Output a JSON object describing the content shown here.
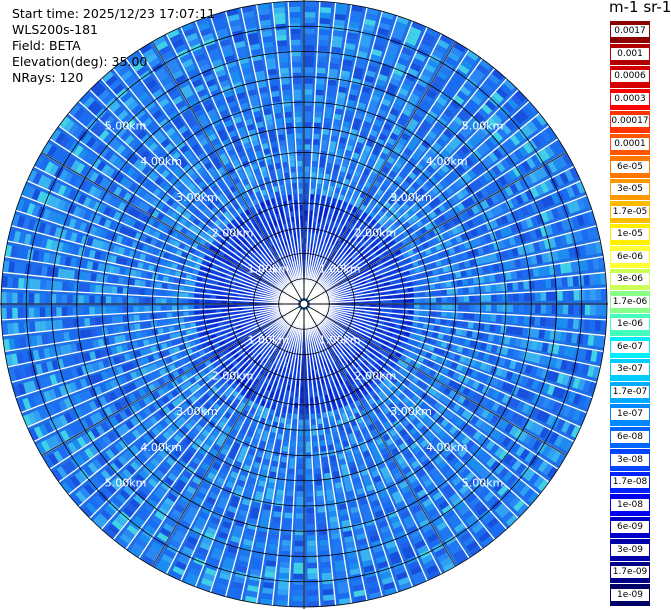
{
  "header": {
    "start_time": "Start time: 2025/12/23 17:07:11",
    "station": "WLS200s-181",
    "field": "Field: BETA",
    "elevation": "Elevation(deg): 35.00",
    "nrays": "NRays: 120"
  },
  "colorbar": {
    "title": "m-1 sr-1",
    "labels": [
      "0.0017",
      "0.001",
      "0.0006",
      "0.0003",
      "0.00017",
      "0.0001",
      "6e-05",
      "3e-05",
      "1.7e-05",
      "1e-05",
      "6e-06",
      "3e-06",
      "1.7e-06",
      "1e-06",
      "6e-07",
      "3e-07",
      "1.7e-07",
      "1e-07",
      "6e-08",
      "3e-08",
      "1.7e-08",
      "1e-08",
      "6e-09",
      "3e-09",
      "1.7e-09",
      "1e-09"
    ],
    "colors": [
      "#8b0000",
      "#b00000",
      "#d40000",
      "#ff0000",
      "#ff3300",
      "#ff5500",
      "#ff7700",
      "#ff9900",
      "#ffbb00",
      "#ffee00",
      "#ffff33",
      "#ccff55",
      "#88ff88",
      "#44ffbb",
      "#00eeff",
      "#00ccff",
      "#00aaff",
      "#0088ff",
      "#0066ff",
      "#0044ff",
      "#0022ff",
      "#0000ee",
      "#0000cc",
      "#0000aa",
      "#000088",
      "#000066"
    ]
  },
  "chart_data": {
    "type": "heatmap",
    "description_field": "BETA",
    "units": "m-1 sr-1",
    "rays": 120,
    "elevation_deg": 35.0,
    "range_rings_km": [
      1.0,
      2.0,
      3.0,
      4.0,
      5.0
    ],
    "ring_labels": [
      "1.00km",
      "2.00km",
      "3.00km",
      "4.00km",
      "5.00km"
    ],
    "max_range_km": 6.0,
    "dominant_value_range": [
      3e-08,
      1e-07
    ],
    "near_range_value_range": [
      3e-09,
      1.7e-08
    ],
    "grid": true
  }
}
